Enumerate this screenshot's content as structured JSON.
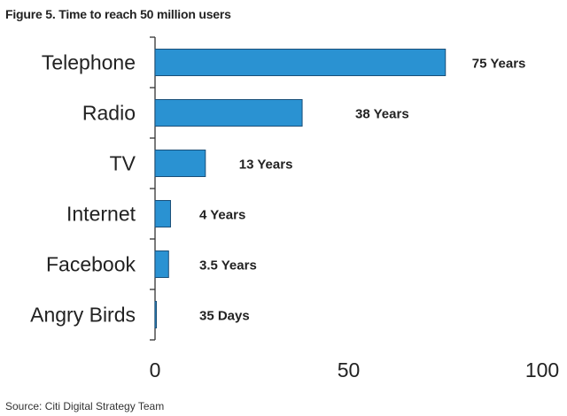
{
  "chart_data": {
    "type": "bar",
    "orientation": "horizontal",
    "title": "Figure 5. Time to reach 50 million users",
    "source": "Source: Citi Digital Strategy Team",
    "categories": [
      "Telephone",
      "Radio",
      "TV",
      "Internet",
      "Facebook",
      "Angry Birds"
    ],
    "values": [
      75,
      38,
      13,
      4,
      3.5,
      0.1
    ],
    "value_labels": [
      "75 Years",
      "38 Years",
      "13 Years",
      "4 Years",
      "3.5 Years",
      "35 Days"
    ],
    "xlim": [
      0,
      100
    ],
    "xticks": [
      "0",
      "50",
      "100"
    ],
    "xlabel": "",
    "ylabel": "",
    "grid": false,
    "colors": {
      "bar": "#2a92d2",
      "bar_stroke": "#1a4f78",
      "axis": "#333333"
    }
  }
}
